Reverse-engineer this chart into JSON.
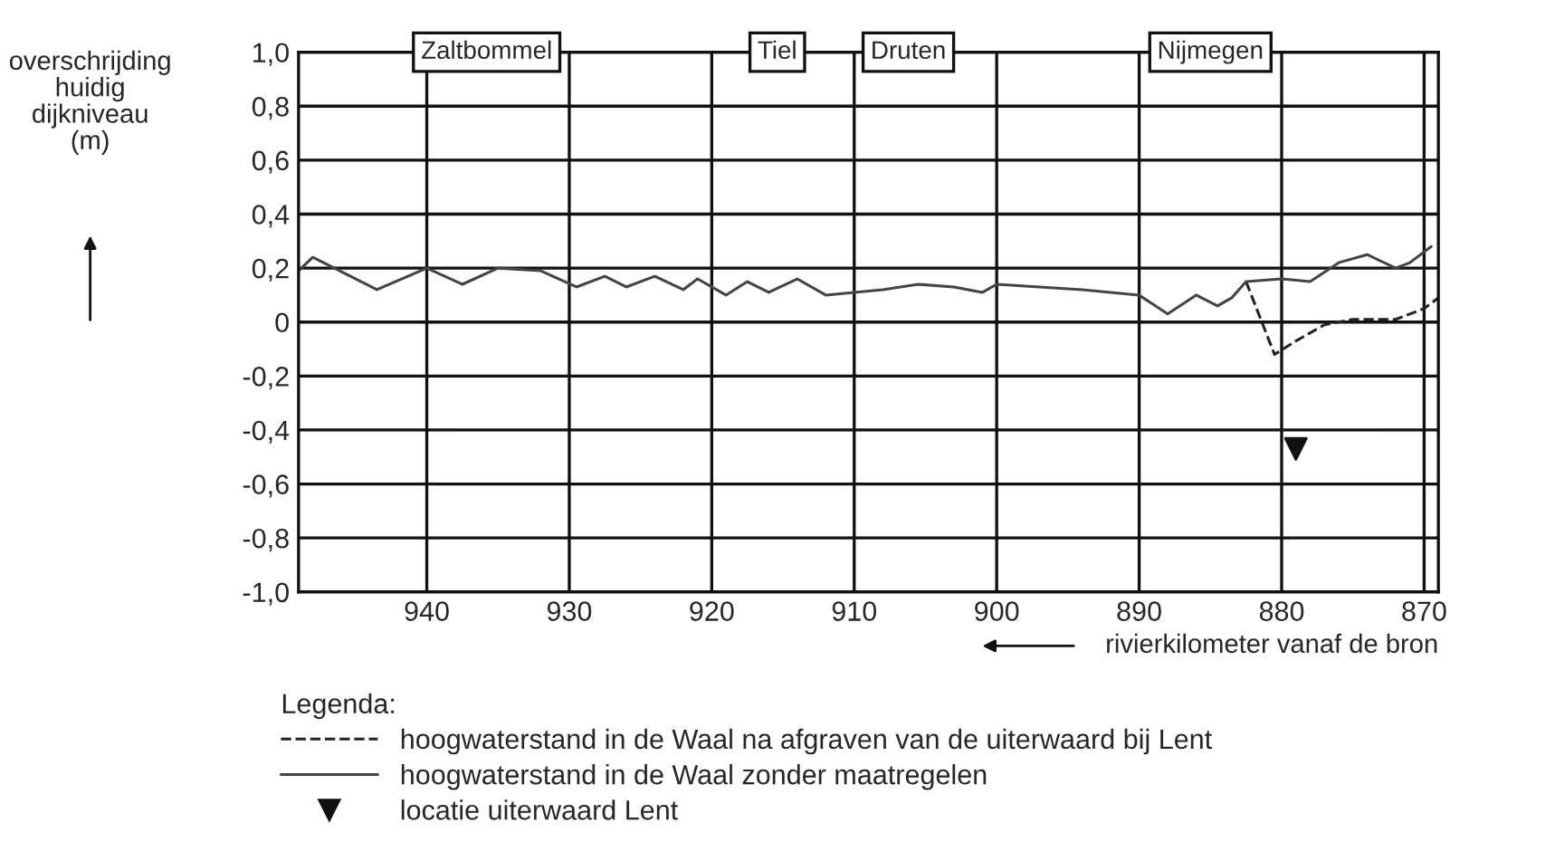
{
  "chart_data": {
    "type": "line",
    "xlabel": "rivierkilometer vanaf de bron",
    "ylabel": "overschrijding\nhuidig\ndijkniveau\n(m)",
    "legend_title": "Legenda:",
    "xlim": [
      949,
      869
    ],
    "xticks": [
      940,
      930,
      920,
      910,
      900,
      890,
      880,
      870
    ],
    "ylim": [
      -1.0,
      1.0
    ],
    "yticks": [
      {
        "value": 1.0,
        "label": "1,0"
      },
      {
        "value": 0.8,
        "label": "0,8"
      },
      {
        "value": 0.6,
        "label": "0,6"
      },
      {
        "value": 0.4,
        "label": "0,4"
      },
      {
        "value": 0.2,
        "label": "0,2"
      },
      {
        "value": 0,
        "label": "0"
      },
      {
        "value": -0.2,
        "label": "-0,2"
      },
      {
        "value": -0.4,
        "label": "-0,4"
      },
      {
        "value": -0.6,
        "label": "-0,6"
      },
      {
        "value": -0.8,
        "label": "-0,8"
      },
      {
        "value": -1.0,
        "label": "-1,0"
      }
    ],
    "grid": true,
    "legend": "bottom",
    "series": [
      {
        "name": "hoogwaterstand in de Waal na afgraven van de uiterwaard bij Lent",
        "line_style": "dashed",
        "color": "#222222",
        "x": [
          882.5,
          880.5,
          879,
          877,
          875,
          872,
          870,
          869
        ],
        "values": [
          0.15,
          -0.12,
          -0.07,
          -0.01,
          0.01,
          0.01,
          0.05,
          0.09
        ]
      },
      {
        "name": "hoogwaterstand in de Waal zonder maatregelen",
        "line_style": "solid",
        "color": "#444444",
        "x": [
          949,
          948,
          943.5,
          940,
          937.5,
          935,
          932,
          929.5,
          927.5,
          926,
          924,
          922,
          921,
          919,
          917.5,
          916,
          914,
          912,
          908,
          905.5,
          903,
          901,
          900,
          894,
          890,
          888,
          886,
          884.5,
          883.5,
          882.5,
          880,
          878,
          876,
          874,
          872,
          871,
          869.5
        ],
        "values": [
          0.19,
          0.24,
          0.12,
          0.2,
          0.14,
          0.2,
          0.19,
          0.13,
          0.17,
          0.13,
          0.17,
          0.12,
          0.16,
          0.1,
          0.15,
          0.11,
          0.16,
          0.1,
          0.12,
          0.14,
          0.13,
          0.11,
          0.14,
          0.12,
          0.1,
          0.03,
          0.1,
          0.06,
          0.09,
          0.15,
          0.16,
          0.15,
          0.22,
          0.25,
          0.2,
          0.22,
          0.28
        ]
      },
      {
        "name": "locatie uiterwaard Lent",
        "type": "scatter",
        "marker": "triangle",
        "color": "#111111",
        "x": [
          879
        ],
        "values": [
          -0.47
        ]
      }
    ],
    "annotations": [
      "Zaltbommel",
      "Tiel",
      "Druten",
      "Nijmegen"
    ]
  }
}
